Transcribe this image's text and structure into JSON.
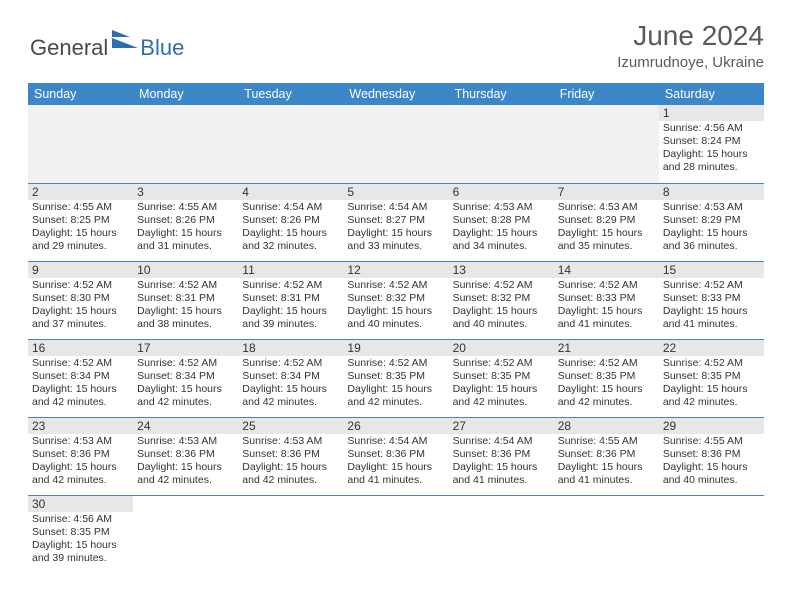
{
  "logo": {
    "general": "General",
    "blue": "Blue"
  },
  "title": "June 2024",
  "subtitle": "Izumrudnoye, Ukraine",
  "colors": {
    "header_bg": "#3b87c8",
    "header_text": "#ffffff",
    "daynum_bg": "#e7e7e7",
    "border": "#3b87c8",
    "logo_blue": "#2c6fb0",
    "text": "#333333"
  },
  "weekdays": [
    "Sunday",
    "Monday",
    "Tuesday",
    "Wednesday",
    "Thursday",
    "Friday",
    "Saturday"
  ],
  "weeks": [
    [
      null,
      null,
      null,
      null,
      null,
      null,
      {
        "n": "1",
        "sr": "4:56 AM",
        "ss": "8:24 PM",
        "dl": "15 hours and 28 minutes."
      }
    ],
    [
      {
        "n": "2",
        "sr": "4:55 AM",
        "ss": "8:25 PM",
        "dl": "15 hours and 29 minutes."
      },
      {
        "n": "3",
        "sr": "4:55 AM",
        "ss": "8:26 PM",
        "dl": "15 hours and 31 minutes."
      },
      {
        "n": "4",
        "sr": "4:54 AM",
        "ss": "8:26 PM",
        "dl": "15 hours and 32 minutes."
      },
      {
        "n": "5",
        "sr": "4:54 AM",
        "ss": "8:27 PM",
        "dl": "15 hours and 33 minutes."
      },
      {
        "n": "6",
        "sr": "4:53 AM",
        "ss": "8:28 PM",
        "dl": "15 hours and 34 minutes."
      },
      {
        "n": "7",
        "sr": "4:53 AM",
        "ss": "8:29 PM",
        "dl": "15 hours and 35 minutes."
      },
      {
        "n": "8",
        "sr": "4:53 AM",
        "ss": "8:29 PM",
        "dl": "15 hours and 36 minutes."
      }
    ],
    [
      {
        "n": "9",
        "sr": "4:52 AM",
        "ss": "8:30 PM",
        "dl": "15 hours and 37 minutes."
      },
      {
        "n": "10",
        "sr": "4:52 AM",
        "ss": "8:31 PM",
        "dl": "15 hours and 38 minutes."
      },
      {
        "n": "11",
        "sr": "4:52 AM",
        "ss": "8:31 PM",
        "dl": "15 hours and 39 minutes."
      },
      {
        "n": "12",
        "sr": "4:52 AM",
        "ss": "8:32 PM",
        "dl": "15 hours and 40 minutes."
      },
      {
        "n": "13",
        "sr": "4:52 AM",
        "ss": "8:32 PM",
        "dl": "15 hours and 40 minutes."
      },
      {
        "n": "14",
        "sr": "4:52 AM",
        "ss": "8:33 PM",
        "dl": "15 hours and 41 minutes."
      },
      {
        "n": "15",
        "sr": "4:52 AM",
        "ss": "8:33 PM",
        "dl": "15 hours and 41 minutes."
      }
    ],
    [
      {
        "n": "16",
        "sr": "4:52 AM",
        "ss": "8:34 PM",
        "dl": "15 hours and 42 minutes."
      },
      {
        "n": "17",
        "sr": "4:52 AM",
        "ss": "8:34 PM",
        "dl": "15 hours and 42 minutes."
      },
      {
        "n": "18",
        "sr": "4:52 AM",
        "ss": "8:34 PM",
        "dl": "15 hours and 42 minutes."
      },
      {
        "n": "19",
        "sr": "4:52 AM",
        "ss": "8:35 PM",
        "dl": "15 hours and 42 minutes."
      },
      {
        "n": "20",
        "sr": "4:52 AM",
        "ss": "8:35 PM",
        "dl": "15 hours and 42 minutes."
      },
      {
        "n": "21",
        "sr": "4:52 AM",
        "ss": "8:35 PM",
        "dl": "15 hours and 42 minutes."
      },
      {
        "n": "22",
        "sr": "4:52 AM",
        "ss": "8:35 PM",
        "dl": "15 hours and 42 minutes."
      }
    ],
    [
      {
        "n": "23",
        "sr": "4:53 AM",
        "ss": "8:36 PM",
        "dl": "15 hours and 42 minutes."
      },
      {
        "n": "24",
        "sr": "4:53 AM",
        "ss": "8:36 PM",
        "dl": "15 hours and 42 minutes."
      },
      {
        "n": "25",
        "sr": "4:53 AM",
        "ss": "8:36 PM",
        "dl": "15 hours and 42 minutes."
      },
      {
        "n": "26",
        "sr": "4:54 AM",
        "ss": "8:36 PM",
        "dl": "15 hours and 41 minutes."
      },
      {
        "n": "27",
        "sr": "4:54 AM",
        "ss": "8:36 PM",
        "dl": "15 hours and 41 minutes."
      },
      {
        "n": "28",
        "sr": "4:55 AM",
        "ss": "8:36 PM",
        "dl": "15 hours and 41 minutes."
      },
      {
        "n": "29",
        "sr": "4:55 AM",
        "ss": "8:36 PM",
        "dl": "15 hours and 40 minutes."
      }
    ],
    [
      {
        "n": "30",
        "sr": "4:56 AM",
        "ss": "8:35 PM",
        "dl": "15 hours and 39 minutes."
      },
      null,
      null,
      null,
      null,
      null,
      null
    ]
  ],
  "labels": {
    "sunrise": "Sunrise:",
    "sunset": "Sunset:",
    "daylight": "Daylight:"
  }
}
